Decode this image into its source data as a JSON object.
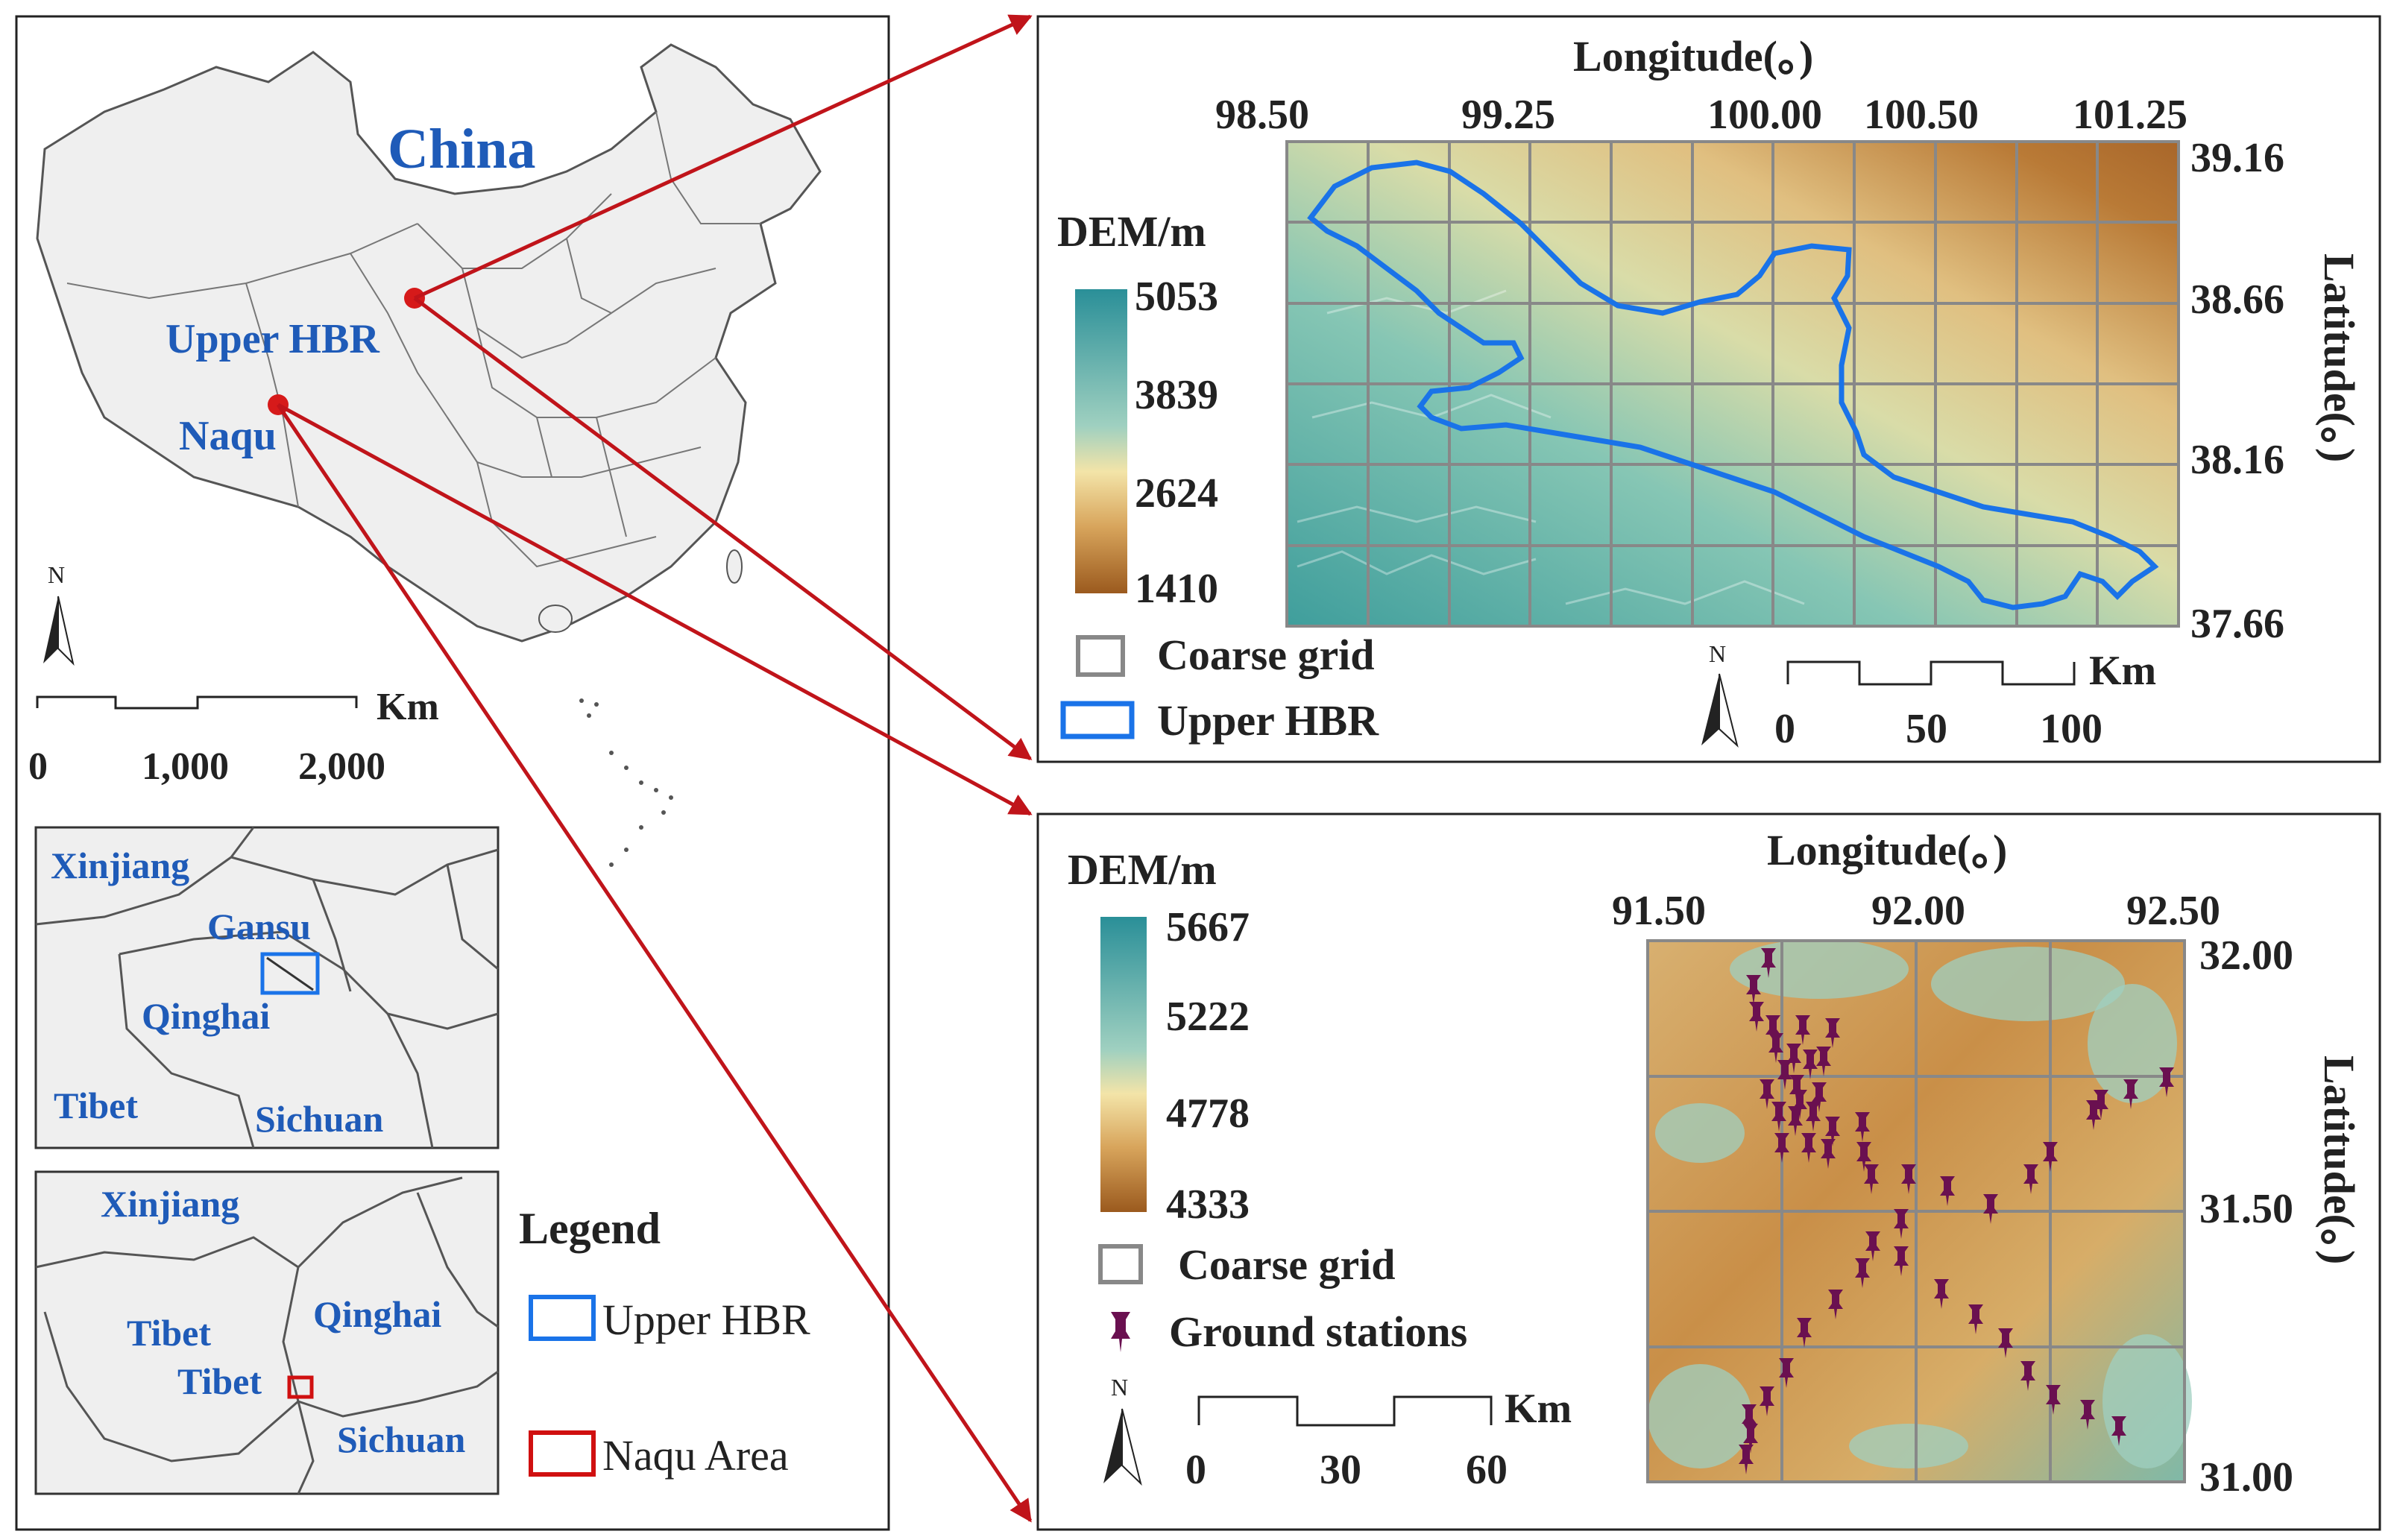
{
  "overview": {
    "title": "China",
    "upper_hbr_label": "Upper HBR",
    "naqu_label": "Naqu",
    "north": "N",
    "scale_unit": "Km",
    "scale_ticks": [
      "0",
      "1,000",
      "2,000"
    ]
  },
  "inset_upper": {
    "labels": [
      "Xinjiang",
      "Gansu",
      "Qinghai",
      "Tibet",
      "Sichuan"
    ]
  },
  "inset_naqu": {
    "labels": [
      "Xinjiang",
      "Tibet",
      "Qinghai",
      "Tibet",
      "Sichuan"
    ]
  },
  "legend": {
    "title": "Legend",
    "items": [
      {
        "label": "Upper HBR",
        "color": "#1a73e8"
      },
      {
        "label": "Naqu Area",
        "color": "#d01010"
      }
    ]
  },
  "hbr_panel": {
    "lon_title": "Longitude(。)",
    "lat_title": "Latitude(。)",
    "lon_ticks": [
      "98.50",
      "99.25",
      "100.00",
      "100.50",
      "101.25"
    ],
    "lat_ticks": [
      "39.16",
      "38.66",
      "38.16",
      "37.66"
    ],
    "dem_title": "DEM/m",
    "dem_values": [
      "5053",
      "3839",
      "2624",
      "1410"
    ],
    "legend_grid": "Coarse grid",
    "legend_basin": "Upper HBR",
    "north": "N",
    "scale_unit": "Km",
    "scale_ticks": [
      "0",
      "50",
      "100"
    ]
  },
  "naqu_panel": {
    "lon_title": "Longitude(。)",
    "lat_title": "Latitude(。)",
    "lon_ticks": [
      "91.50",
      "92.00",
      "92.50"
    ],
    "lat_ticks": [
      "32.00",
      "31.50",
      "31.00"
    ],
    "dem_title": "DEM/m",
    "dem_values": [
      "5667",
      "5222",
      "4778",
      "4333"
    ],
    "legend_grid": "Coarse grid",
    "legend_stations": "Ground stations",
    "north": "N",
    "scale_unit": "Km",
    "scale_ticks": [
      "0",
      "30",
      "60"
    ]
  },
  "colors": {
    "label_blue": "#1f5bb8",
    "arrow_red": "#c0141a",
    "land": "#efefef",
    "station": "#6a1050"
  }
}
